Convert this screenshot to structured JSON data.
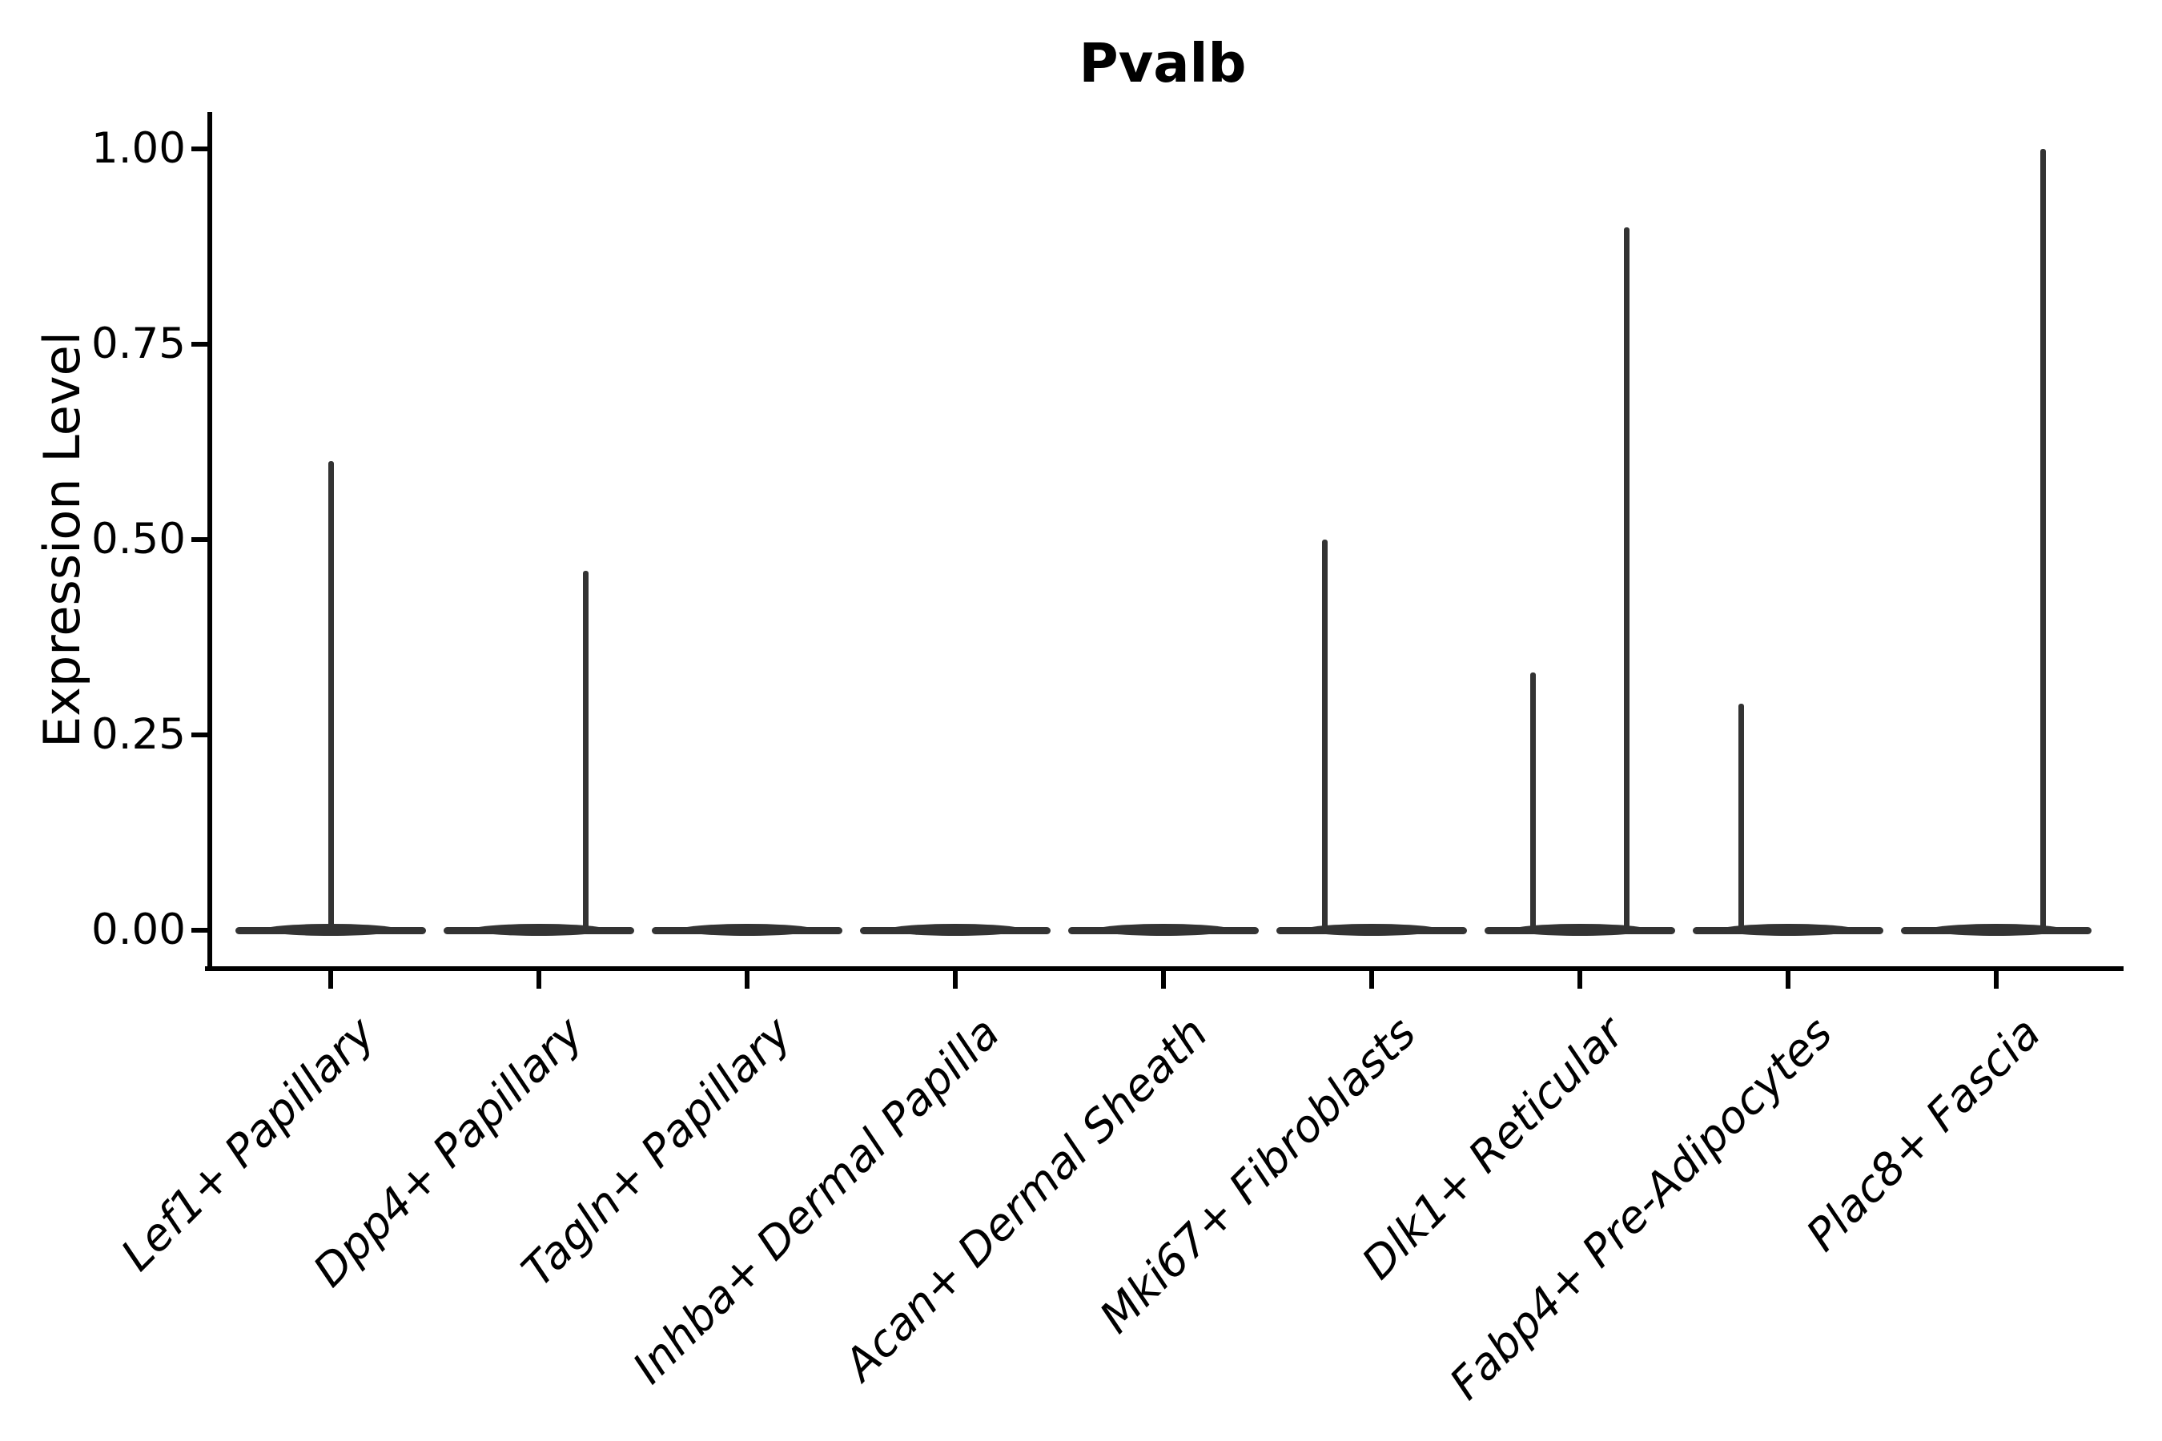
{
  "title": "Pvalb",
  "y_axis": {
    "label": "Expression Level",
    "tick_labels": [
      "1.00",
      "0.75",
      "0.50",
      "0.25",
      "0.00"
    ],
    "tick_values": [
      1.0,
      0.75,
      0.5,
      0.25,
      0.0
    ]
  },
  "colors": {
    "violin": "#333333",
    "axis": "#000000",
    "text": "#000000",
    "background": "#ffffff"
  },
  "chart_data": {
    "type": "violin",
    "title": "Pvalb",
    "xlabel": "",
    "ylabel": "Expression Level",
    "ylim": [
      0,
      1.05
    ],
    "yticks": [
      0.0,
      0.25,
      0.5,
      0.75,
      1.0
    ],
    "grid": false,
    "legend": "none",
    "categories": [
      "Lef1+ Papillary",
      "Dpp4+ Papillary",
      "Tagln+ Papillary",
      "Inhba+ Dermal Papilla",
      "Acan+ Dermal Sheath",
      "Mki67+ Fibroblasts",
      "Dlk1+ Reticular",
      "Fabp4+ Pre-Adipocytes",
      "Plac8+ Fascia"
    ],
    "series": [
      {
        "name": "Lef1+ Papillary",
        "base_value": 0.0,
        "spikes": [
          {
            "value": 0.6,
            "offset": 0.0
          }
        ]
      },
      {
        "name": "Dpp4+ Papillary",
        "base_value": 0.0,
        "spikes": [
          {
            "value": 0.46,
            "offset": 0.226
          }
        ]
      },
      {
        "name": "Tagln+ Papillary",
        "base_value": 0.0,
        "spikes": []
      },
      {
        "name": "Inhba+ Dermal Papilla",
        "base_value": 0.0,
        "spikes": []
      },
      {
        "name": "Acan+ Dermal Sheath",
        "base_value": 0.0,
        "spikes": []
      },
      {
        "name": "Mki67+ Fibroblasts",
        "base_value": 0.0,
        "spikes": [
          {
            "value": 0.5,
            "offset": -0.226
          }
        ]
      },
      {
        "name": "Dlk1+ Reticular",
        "base_value": 0.0,
        "spikes": [
          {
            "value": 0.33,
            "offset": -0.226
          },
          {
            "value": 0.9,
            "offset": 0.226
          }
        ]
      },
      {
        "name": "Fabp4+ Pre-Adipocytes",
        "base_value": 0.0,
        "spikes": [
          {
            "value": 0.29,
            "offset": -0.226
          }
        ]
      },
      {
        "name": "Plac8+ Fascia",
        "base_value": 0.0,
        "spikes": [
          {
            "value": 1.0,
            "offset": 0.226
          }
        ]
      }
    ]
  }
}
